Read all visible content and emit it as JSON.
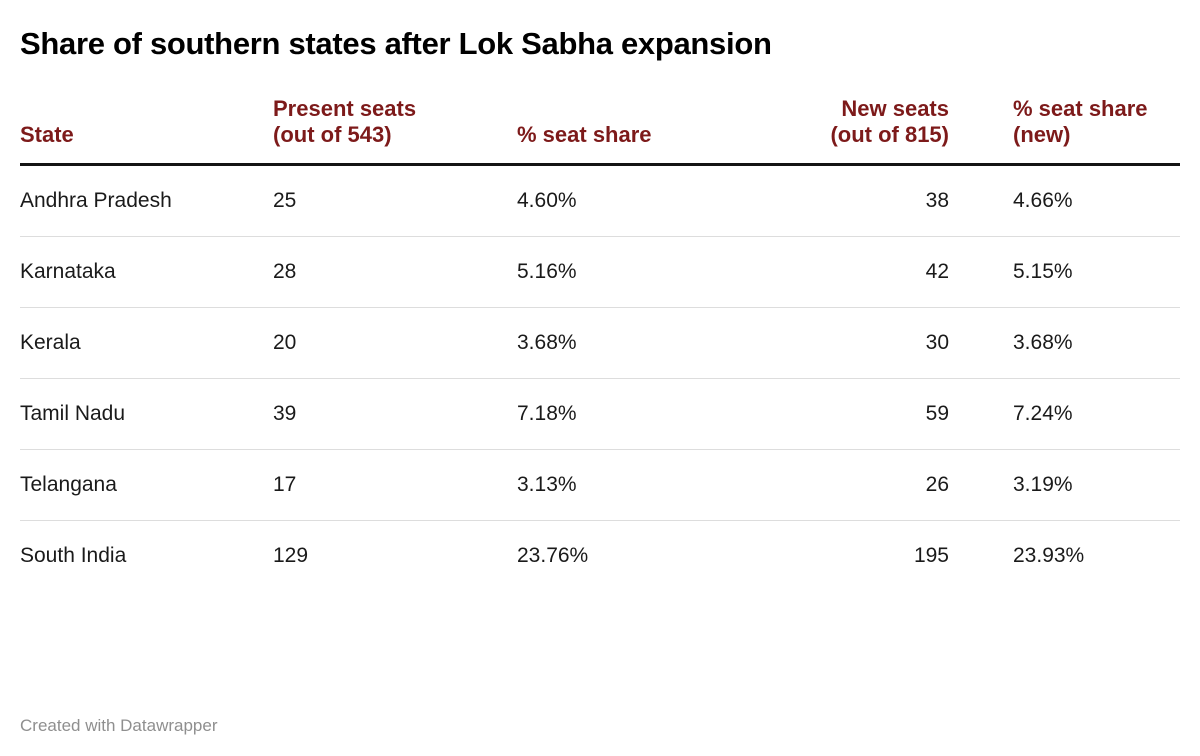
{
  "title": "Share of southern states after Lok Sabha expansion",
  "footer": "Created with Datawrapper",
  "colors": {
    "header": "#7d1a1a",
    "title": "#000000",
    "body": "#1a1a1a",
    "row_rule": "#dddddd",
    "header_rule": "#141414",
    "footer": "#8f8f8f"
  },
  "chart_data": {
    "type": "table",
    "title": "Share of southern states after Lok Sabha expansion",
    "columns": [
      "State",
      "Present seats (out of 543)",
      "% seat share",
      "New seats (out of 815)",
      "% seat share (new)"
    ],
    "rows": [
      [
        "Andhra Pradesh",
        "25",
        "4.60%",
        "38",
        "4.66%"
      ],
      [
        "Karnataka",
        "28",
        "5.16%",
        "42",
        "5.15%"
      ],
      [
        "Kerala",
        "20",
        "3.68%",
        "30",
        "3.68%"
      ],
      [
        "Tamil Nadu",
        "39",
        "7.18%",
        "59",
        "7.24%"
      ],
      [
        "Telangana",
        "17",
        "3.13%",
        "26",
        "3.19%"
      ],
      [
        "South India",
        "129",
        "23.76%",
        "195",
        "23.93%"
      ]
    ],
    "column_alignment": [
      "left",
      "left",
      "left",
      "right",
      "left"
    ],
    "attribution": "Created with Datawrapper"
  }
}
